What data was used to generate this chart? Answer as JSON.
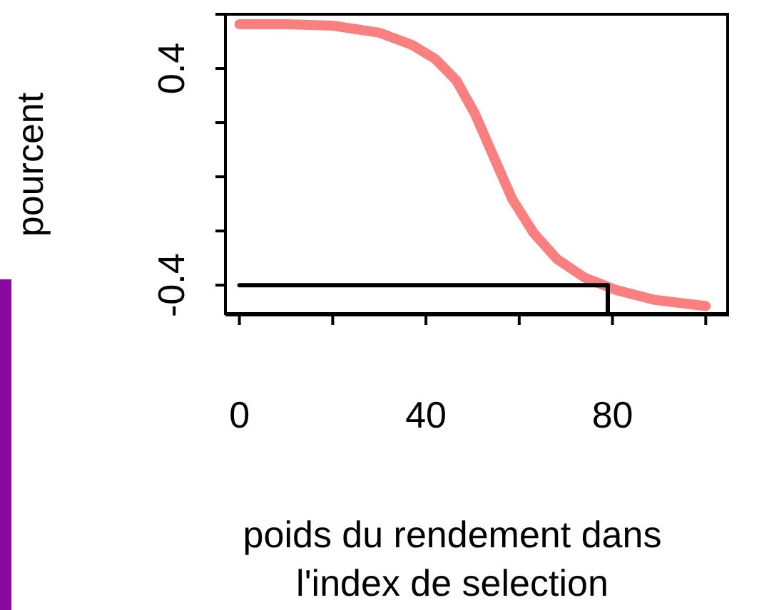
{
  "chart_data": {
    "type": "line",
    "xlabel": "poids du rendement dans l'index de selection",
    "ylabel": "pourcent",
    "xlim": [
      -3,
      105
    ],
    "xticks": [
      0,
      {
        "value": 20,
        "label": null
      },
      40,
      {
        "value": 60,
        "label": null
      },
      80,
      {
        "value": 100,
        "label": null
      }
    ],
    "ylim": [
      -0.51,
      0.6
    ],
    "yticks": [
      {
        "value": 0.6,
        "label": null
      },
      0.4,
      {
        "value": 0.2,
        "label": null
      },
      {
        "value": 0,
        "label": null
      },
      {
        "value": -0.2,
        "label": null
      },
      -0.4
    ],
    "marker": "none",
    "line_style": "solid",
    "series": [
      {
        "color": "#fa8080",
        "x": [
          0,
          10,
          20,
          30,
          37,
          42,
          46.5,
          50.5,
          54.5,
          58.5,
          63,
          68,
          74,
          81,
          89,
          100
        ],
        "values": [
          0.563,
          0.563,
          0.558,
          0.532,
          0.487,
          0.435,
          0.356,
          0.233,
          0.075,
          -0.082,
          -0.205,
          -0.302,
          -0.372,
          -0.419,
          -0.454,
          -0.477
        ]
      },
      {
        "color": "#000000",
        "x": [
          0,
          79,
          79
        ],
        "values": [
          -0.4,
          -0.4,
          -0.51
        ]
      }
    ]
  }
}
